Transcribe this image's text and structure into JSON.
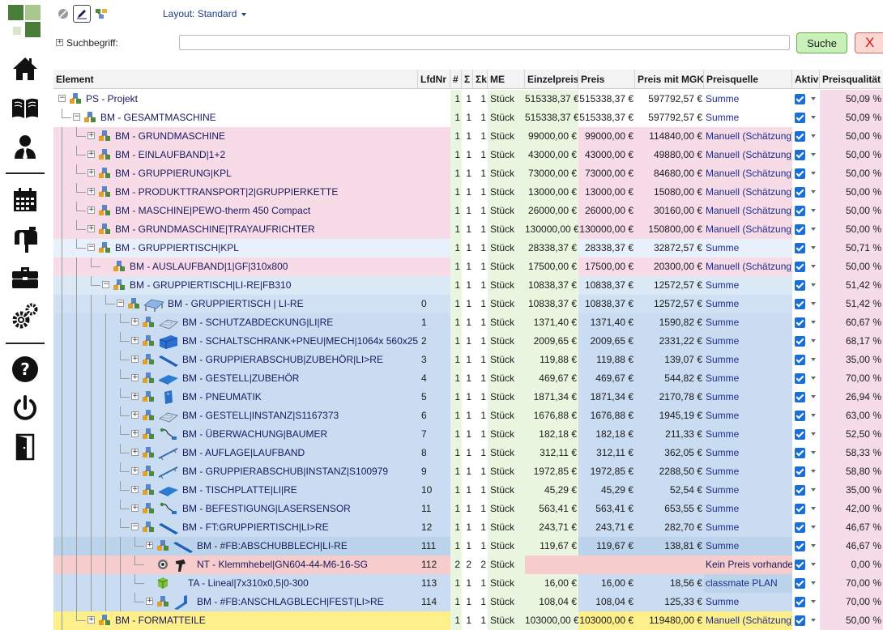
{
  "toolbar": {
    "layout_label": "Layout: Standard",
    "search_label": "Suchbegriff:",
    "search_value": "",
    "search_button": "Suche",
    "close_button": "X"
  },
  "columns": [
    "Element",
    "LfdNr",
    "#",
    "Σ",
    "Σk",
    "ME",
    "Einzelpreis",
    "Preis",
    "Preis mit MGK",
    "Preisquelle",
    "Aktiv",
    "Preisqualität"
  ],
  "rows": [
    {
      "name": "PS - Projekt",
      "level": 0,
      "lfd": "",
      "n": "1",
      "s": "1",
      "sk": "1",
      "me": "Stück",
      "ep": "515338,37 €",
      "preis": "515338,37 €",
      "mgk": "597792,57 €",
      "pq": "Summe",
      "qual": "50,09 %",
      "bg": "#ffffff",
      "exp": "minus",
      "icon": "node",
      "img": ""
    },
    {
      "name": "BM - GESAMTMASCHINE",
      "level": 1,
      "lfd": "",
      "n": "1",
      "s": "1",
      "sk": "1",
      "me": "Stück",
      "ep": "515338,37 €",
      "preis": "515338,37 €",
      "mgk": "597792,57 €",
      "pq": "Summe",
      "qual": "50,09 %",
      "bg": "#e8f1fb",
      "exp": "minus",
      "icon": "node",
      "img": ""
    },
    {
      "name": "BM - GRUNDMASCHINE",
      "level": 2,
      "lfd": "",
      "n": "1",
      "s": "1",
      "sk": "1",
      "me": "Stück",
      "ep": "99000,00 €",
      "preis": "99000,00 €",
      "mgk": "114840,00 €",
      "pq": "Manuell (Schätzung)",
      "qual": "50,00 %",
      "bg": "#f7dce8",
      "exp": "plus",
      "icon": "node",
      "img": ""
    },
    {
      "name": "BM - EINLAUFBAND|1+2",
      "level": 2,
      "lfd": "",
      "n": "1",
      "s": "1",
      "sk": "1",
      "me": "Stück",
      "ep": "43000,00 €",
      "preis": "43000,00 €",
      "mgk": "49880,00 €",
      "pq": "Manuell (Schätzung)",
      "qual": "50,00 %",
      "bg": "#f7dce8",
      "exp": "plus",
      "icon": "node",
      "img": ""
    },
    {
      "name": "BM - GRUPPIERUNG|KPL",
      "level": 2,
      "lfd": "",
      "n": "1",
      "s": "1",
      "sk": "1",
      "me": "Stück",
      "ep": "73000,00 €",
      "preis": "73000,00 €",
      "mgk": "84680,00 €",
      "pq": "Manuell (Schätzung)",
      "qual": "50,00 %",
      "bg": "#f7dce8",
      "exp": "plus",
      "icon": "node",
      "img": ""
    },
    {
      "name": "BM - PRODUKTTRANSPORT|2|GRUPPIERKETTE",
      "level": 2,
      "lfd": "",
      "n": "1",
      "s": "1",
      "sk": "1",
      "me": "Stück",
      "ep": "13000,00 €",
      "preis": "13000,00 €",
      "mgk": "15080,00 €",
      "pq": "Manuell (Schätzung)",
      "qual": "50,00 %",
      "bg": "#f7dce8",
      "exp": "plus",
      "icon": "node",
      "img": ""
    },
    {
      "name": "BM - MASCHINE|PEWO-therm 450 Compact",
      "level": 2,
      "lfd": "",
      "n": "1",
      "s": "1",
      "sk": "1",
      "me": "Stück",
      "ep": "26000,00 €",
      "preis": "26000,00 €",
      "mgk": "30160,00 €",
      "pq": "Manuell (Schätzung)",
      "qual": "50,00 %",
      "bg": "#f7dce8",
      "exp": "plus",
      "icon": "node",
      "img": ""
    },
    {
      "name": "BM - GRUNDMASCHINE|TRAYAUFRICHTER",
      "level": 2,
      "lfd": "",
      "n": "1",
      "s": "1",
      "sk": "1",
      "me": "Stück",
      "ep": "130000,00 €",
      "preis": "130000,00 €",
      "mgk": "150800,00 €",
      "pq": "Manuell (Schätzung)",
      "qual": "50,00 %",
      "bg": "#f7dce8",
      "exp": "plus",
      "icon": "node",
      "img": ""
    },
    {
      "name": "BM - GRUPPIERTISCH|KPL",
      "level": 2,
      "lfd": "",
      "n": "1",
      "s": "1",
      "sk": "1",
      "me": "Stück",
      "ep": "28338,37 €",
      "preis": "28338,37 €",
      "mgk": "32872,57 €",
      "pq": "Summe",
      "qual": "50,71 %",
      "bg": "#e8f1fb",
      "exp": "minus",
      "icon": "node",
      "img": ""
    },
    {
      "name": "BM - AUSLAUFBAND|1|GF|310x800",
      "level": 3,
      "lfd": "",
      "n": "1",
      "s": "1",
      "sk": "1",
      "me": "Stück",
      "ep": "17500,00 €",
      "preis": "17500,00 €",
      "mgk": "20300,00 €",
      "pq": "Manuell (Schätzung)",
      "qual": "50,00 %",
      "bg": "#f7dce8",
      "exp": "none",
      "icon": "node",
      "img": ""
    },
    {
      "name": "BM - GRUPPIERTISCH|LI-RE|FB310",
      "level": 3,
      "lfd": "",
      "n": "1",
      "s": "1",
      "sk": "1",
      "me": "Stück",
      "ep": "10838,37 €",
      "preis": "10838,37 €",
      "mgk": "12572,57 €",
      "pq": "Summe",
      "qual": "51,42 %",
      "bg": "#dbe8f6",
      "exp": "minus",
      "icon": "node",
      "img": ""
    },
    {
      "name": "BM - GRUPPIERTISCH | LI-RE",
      "level": 4,
      "lfd": "0",
      "n": "1",
      "s": "1",
      "sk": "1",
      "me": "Stück",
      "ep": "10838,37 €",
      "preis": "10838,37 €",
      "mgk": "12572,57 €",
      "pq": "Summe",
      "qual": "51,42 %",
      "bg": "#d0e1f3",
      "exp": "minus",
      "icon": "node",
      "img": "table"
    },
    {
      "name": "BM - SCHUTZABDECKUNG|LI|RE",
      "level": 5,
      "lfd": "1",
      "n": "1",
      "s": "1",
      "sk": "1",
      "me": "Stück",
      "ep": "1371,40 €",
      "preis": "1371,40 €",
      "mgk": "1590,82 €",
      "pq": "Summe",
      "qual": "60,67 %",
      "bg": "#c9dcf1",
      "exp": "plus",
      "icon": "node",
      "img": "frame"
    },
    {
      "name": "BM - SCHALTSCHRANK+PNEU|MECH|1064x 560x253|VA",
      "level": 5,
      "lfd": "2",
      "n": "1",
      "s": "1",
      "sk": "1",
      "me": "Stück",
      "ep": "2009,65 €",
      "preis": "2009,65 €",
      "mgk": "2331,22 €",
      "pq": "Summe",
      "qual": "68,17 %",
      "bg": "#c9dcf1",
      "exp": "plus",
      "icon": "node",
      "img": "box"
    },
    {
      "name": "BM - GRUPPIERABSCHUB|ZUBEHÖR|LI>RE",
      "level": 5,
      "lfd": "3",
      "n": "1",
      "s": "1",
      "sk": "1",
      "me": "Stück",
      "ep": "119,88 €",
      "preis": "119,88 €",
      "mgk": "139,07 €",
      "pq": "Summe",
      "qual": "35,00 %",
      "bg": "#c9dcf1",
      "exp": "plus",
      "icon": "node",
      "img": "bar"
    },
    {
      "name": "BM - GESTELL|ZUBEHÖR",
      "level": 5,
      "lfd": "4",
      "n": "1",
      "s": "1",
      "sk": "1",
      "me": "Stück",
      "ep": "469,67 €",
      "preis": "469,67 €",
      "mgk": "544,82 €",
      "pq": "Summe",
      "qual": "70,00 %",
      "bg": "#c9dcf1",
      "exp": "plus",
      "icon": "node",
      "img": "plate"
    },
    {
      "name": "BM - PNEUMATIK",
      "level": 5,
      "lfd": "5",
      "n": "1",
      "s": "1",
      "sk": "1",
      "me": "Stück",
      "ep": "1871,34 €",
      "preis": "1871,34 €",
      "mgk": "2170,78 €",
      "pq": "Summe",
      "qual": "26,94 %",
      "bg": "#c9dcf1",
      "exp": "plus",
      "icon": "node",
      "img": "cyl"
    },
    {
      "name": "BM - GESTELL|INSTANZ|S1167373",
      "level": 5,
      "lfd": "6",
      "n": "1",
      "s": "1",
      "sk": "1",
      "me": "Stück",
      "ep": "1676,88 €",
      "preis": "1676,88 €",
      "mgk": "1945,19 €",
      "pq": "Summe",
      "qual": "63,00 %",
      "bg": "#c9dcf1",
      "exp": "plus",
      "icon": "node",
      "img": "frame"
    },
    {
      "name": "BM - ÜBERWACHUNG|BAUMER",
      "level": 5,
      "lfd": "7",
      "n": "1",
      "s": "1",
      "sk": "1",
      "me": "Stück",
      "ep": "182,18 €",
      "preis": "182,18 €",
      "mgk": "211,33 €",
      "pq": "Summe",
      "qual": "52,50 %",
      "bg": "#c9dcf1",
      "exp": "plus",
      "icon": "node",
      "img": "sensor"
    },
    {
      "name": "BM - AUFLAGE|LAUFBAND",
      "level": 5,
      "lfd": "8",
      "n": "1",
      "s": "1",
      "sk": "1",
      "me": "Stück",
      "ep": "312,11 €",
      "preis": "312,11 €",
      "mgk": "362,05 €",
      "pq": "Summe",
      "qual": "58,33 %",
      "bg": "#c9dcf1",
      "exp": "plus",
      "icon": "node",
      "img": "rail"
    },
    {
      "name": "BM - GRUPPIERABSCHUB|INSTANZ|S100979",
      "level": 5,
      "lfd": "9",
      "n": "1",
      "s": "1",
      "sk": "1",
      "me": "Stück",
      "ep": "1972,85 €",
      "preis": "1972,85 €",
      "mgk": "2288,50 €",
      "pq": "Summe",
      "qual": "58,80 %",
      "bg": "#c9dcf1",
      "exp": "plus",
      "icon": "node",
      "img": "rail"
    },
    {
      "name": "BM - TISCHPLATTE|LI|RE",
      "level": 5,
      "lfd": "10",
      "n": "1",
      "s": "1",
      "sk": "1",
      "me": "Stück",
      "ep": "45,29 €",
      "preis": "45,29 €",
      "mgk": "52,54 €",
      "pq": "Summe",
      "qual": "35,00 %",
      "bg": "#c9dcf1",
      "exp": "plus",
      "icon": "node",
      "img": "plate"
    },
    {
      "name": "BM - BEFESTIGUNG|LASERSENSOR",
      "level": 5,
      "lfd": "11",
      "n": "1",
      "s": "1",
      "sk": "1",
      "me": "Stück",
      "ep": "563,41 €",
      "preis": "563,41 €",
      "mgk": "653,55 €",
      "pq": "Summe",
      "qual": "42,00 %",
      "bg": "#c9dcf1",
      "exp": "plus",
      "icon": "node",
      "img": "sensor"
    },
    {
      "name": "BM - FT:GRUPPIERTISCH|LI>RE",
      "level": 5,
      "lfd": "12",
      "n": "1",
      "s": "1",
      "sk": "1",
      "me": "Stück",
      "ep": "243,71 €",
      "preis": "243,71 €",
      "mgk": "282,70 €",
      "pq": "Summe",
      "qual": "46,67 %",
      "bg": "#c9dcf1",
      "exp": "minus",
      "icon": "node",
      "img": "bar"
    },
    {
      "name": "BM - #FB:ABSCHUBBLECH|LI-RE",
      "level": 6,
      "lfd": "111",
      "n": "1",
      "s": "1",
      "sk": "1",
      "me": "Stück",
      "ep": "119,67 €",
      "preis": "119,67 €",
      "mgk": "138,81 €",
      "pq": "Summe",
      "qual": "46,67 %",
      "bg": "#bcd3ec",
      "exp": "plus",
      "icon": "node",
      "img": "bar"
    },
    {
      "name": "NT - Klemmhebel|GN604-44-M6-16-SG",
      "level": 6,
      "lfd": "112",
      "n": "2",
      "s": "2",
      "sk": "2",
      "me": "Stück",
      "ep": "",
      "preis": "",
      "mgk": "",
      "pq": "Kein Preis vorhanden",
      "qual": "0,00 %",
      "bg": "#f6cccc",
      "exp": "none",
      "icon": "gear",
      "img": "lever"
    },
    {
      "name": "TA - Lineal|7x310x0,5|0-300",
      "level": 6,
      "lfd": "113",
      "n": "1",
      "s": "1",
      "sk": "1",
      "me": "Stück",
      "ep": "16,00 €",
      "preis": "16,00 €",
      "mgk": "18,56 €",
      "pq": "classmate PLAN",
      "qual": "70,00 %",
      "bg": "#c9dcf1",
      "exp": "none",
      "icon": "cube",
      "img": ""
    },
    {
      "name": "BM - #FB:ANSCHLAGBLECH|FEST|LI>RE",
      "level": 6,
      "lfd": "114",
      "n": "1",
      "s": "1",
      "sk": "1",
      "me": "Stück",
      "ep": "108,04 €",
      "preis": "108,04 €",
      "mgk": "125,33 €",
      "pq": "Summe",
      "qual": "70,00 %",
      "bg": "#c9dcf1",
      "exp": "plus",
      "icon": "node",
      "img": "angle"
    },
    {
      "name": "BM - FORMATTEILE",
      "level": 2,
      "lfd": "",
      "n": "1",
      "s": "1",
      "sk": "1",
      "me": "Stück",
      "ep": "103000,00 €",
      "preis": "103000,00 €",
      "mgk": "119480,00 €",
      "pq": "Manuell (Schätzung)",
      "qual": "50,00 %",
      "bg": "#fdf08a",
      "exp": "plus",
      "icon": "node",
      "img": ""
    }
  ],
  "colors": {
    "header_bg": "#f3f3f3",
    "quality_bg": "#f6dce8",
    "checkbox": "#1a6fd6",
    "search_button": "#c8f0b8",
    "close_button": "#fbd8d4"
  }
}
